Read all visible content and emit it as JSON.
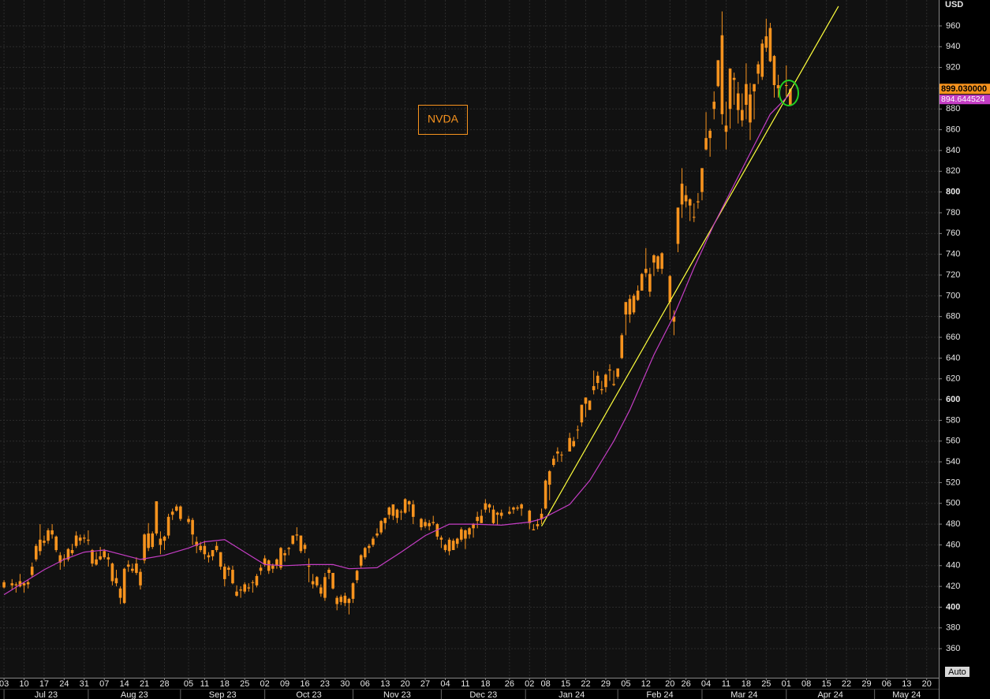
{
  "chart_data": {
    "type": "candlestick",
    "title": "NVDA",
    "y_axis_label": "USD",
    "button": "Auto",
    "color": "#f7931e",
    "x": [
      "2023-07-03",
      "2023-07-05",
      "2023-07-06",
      "2023-07-07",
      "2023-07-10",
      "2023-07-11",
      "2023-07-12",
      "2023-07-13",
      "2023-07-14",
      "2023-07-17",
      "2023-07-18",
      "2023-07-19",
      "2023-07-20",
      "2023-07-21",
      "2023-07-24",
      "2023-07-25",
      "2023-07-26",
      "2023-07-27",
      "2023-07-28",
      "2023-07-31",
      "2023-08-01",
      "2023-08-02",
      "2023-08-03",
      "2023-08-04",
      "2023-08-07",
      "2023-08-08",
      "2023-08-09",
      "2023-08-10",
      "2023-08-11",
      "2023-08-14",
      "2023-08-15",
      "2023-08-16",
      "2023-08-17",
      "2023-08-18",
      "2023-08-21",
      "2023-08-22",
      "2023-08-23",
      "2023-08-24",
      "2023-08-25",
      "2023-08-28",
      "2023-08-29",
      "2023-08-30",
      "2023-08-31",
      "2023-09-01",
      "2023-09-05",
      "2023-09-06",
      "2023-09-07",
      "2023-09-08",
      "2023-09-11",
      "2023-09-12",
      "2023-09-13",
      "2023-09-14",
      "2023-09-15",
      "2023-09-18",
      "2023-09-19",
      "2023-09-20",
      "2023-09-21",
      "2023-09-22",
      "2023-09-25",
      "2023-09-26",
      "2023-09-27",
      "2023-09-28",
      "2023-09-29",
      "2023-10-02",
      "2023-10-03",
      "2023-10-04",
      "2023-10-05",
      "2023-10-06",
      "2023-10-09",
      "2023-10-10",
      "2023-10-11",
      "2023-10-12",
      "2023-10-13",
      "2023-10-16",
      "2023-10-17",
      "2023-10-18",
      "2023-10-19",
      "2023-10-20",
      "2023-10-23",
      "2023-10-24",
      "2023-10-25",
      "2023-10-26",
      "2023-10-27",
      "2023-10-30",
      "2023-10-31",
      "2023-11-01",
      "2023-11-02",
      "2023-11-03",
      "2023-11-06",
      "2023-11-07",
      "2023-11-08",
      "2023-11-09",
      "2023-11-10",
      "2023-11-13",
      "2023-11-14",
      "2023-11-15",
      "2023-11-16",
      "2023-11-17",
      "2023-11-20",
      "2023-11-21",
      "2023-11-22",
      "2023-11-24",
      "2023-11-27",
      "2023-11-28",
      "2023-11-29",
      "2023-11-30",
      "2023-12-01",
      "2023-12-04",
      "2023-12-05",
      "2023-12-06",
      "2023-12-07",
      "2023-12-08",
      "2023-12-11",
      "2023-12-12",
      "2023-12-13",
      "2023-12-14",
      "2023-12-15",
      "2023-12-18",
      "2023-12-19",
      "2023-12-20",
      "2023-12-21",
      "2023-12-22",
      "2023-12-26",
      "2023-12-27",
      "2023-12-28",
      "2023-12-29",
      "2024-01-02",
      "2024-01-03",
      "2024-01-04",
      "2024-01-05",
      "2024-01-08",
      "2024-01-09",
      "2024-01-10",
      "2024-01-11",
      "2024-01-12",
      "2024-01-16",
      "2024-01-17",
      "2024-01-18",
      "2024-01-19",
      "2024-01-22",
      "2024-01-23",
      "2024-01-24",
      "2024-01-25",
      "2024-01-26",
      "2024-01-29",
      "2024-01-30",
      "2024-01-31",
      "2024-02-01",
      "2024-02-02",
      "2024-02-05",
      "2024-02-06",
      "2024-02-07",
      "2024-02-08",
      "2024-02-09",
      "2024-02-12",
      "2024-02-13",
      "2024-02-14",
      "2024-02-15",
      "2024-02-16",
      "2024-02-20",
      "2024-02-21",
      "2024-02-22",
      "2024-02-23",
      "2024-02-26",
      "2024-02-27",
      "2024-02-28",
      "2024-02-29",
      "2024-03-01",
      "2024-03-04",
      "2024-03-05",
      "2024-03-06",
      "2024-03-07",
      "2024-03-08",
      "2024-03-11",
      "2024-03-12",
      "2024-03-13",
      "2024-03-14",
      "2024-03-15",
      "2024-03-18",
      "2024-03-19",
      "2024-03-20",
      "2024-03-21",
      "2024-03-22",
      "2024-03-25",
      "2024-03-26",
      "2024-03-27",
      "2024-03-28",
      "2024-04-01",
      "2024-04-02"
    ],
    "open": [
      419,
      421,
      422,
      420,
      423,
      422,
      431,
      446,
      465,
      462,
      464,
      474,
      468,
      450,
      447,
      446,
      452,
      469,
      464,
      466,
      464,
      455,
      441,
      449,
      448,
      448,
      442,
      428,
      418,
      404,
      441,
      437,
      442,
      421,
      445,
      471,
      458,
      502,
      466,
      464,
      469,
      489,
      497,
      497,
      482,
      484,
      459,
      459,
      459,
      450,
      449,
      459,
      453,
      427,
      438,
      436,
      415,
      417,
      415,
      418,
      424,
      421,
      438,
      441,
      445,
      437,
      440,
      438,
      450,
      456,
      461,
      470,
      469,
      456,
      440,
      425,
      429,
      419,
      409,
      433,
      433,
      409,
      410,
      404,
      404,
      408,
      426,
      440,
      448,
      457,
      460,
      471,
      472,
      481,
      489,
      499,
      486,
      492,
      491,
      502,
      499,
      485,
      478,
      481,
      482,
      480,
      465,
      460,
      454,
      464,
      461,
      465,
      474,
      470,
      476,
      487,
      481,
      494,
      499,
      494,
      491,
      491,
      490,
      496,
      496,
      499,
      493,
      474,
      478,
      485,
      495,
      518,
      537,
      550,
      547,
      550,
      555,
      571,
      578,
      602,
      590,
      609,
      623,
      609,
      612,
      629,
      614,
      622,
      640,
      682,
      697,
      684,
      705,
      705,
      726,
      704,
      732,
      738,
      741,
      719,
      680,
      750,
      808,
      797,
      793,
      776,
      790,
      800,
      841,
      852,
      880,
      902,
      951,
      864,
      880,
      910,
      895,
      869,
      904,
      867,
      897,
      923,
      911,
      939,
      958,
      931,
      900,
      903,
      884
    ],
    "high": [
      426,
      427,
      424,
      432,
      424,
      426,
      443,
      461,
      480,
      469,
      476,
      480,
      469,
      453,
      451,
      457,
      461,
      473,
      470,
      470,
      474,
      456,
      453,
      458,
      456,
      452,
      443,
      436,
      420,
      438,
      445,
      442,
      448,
      437,
      471,
      481,
      473,
      502,
      473,
      469,
      490,
      495,
      499,
      498,
      488,
      486,
      468,
      463,
      464,
      453,
      455,
      463,
      453,
      442,
      440,
      440,
      421,
      420,
      424,
      423,
      426,
      432,
      441,
      450,
      446,
      442,
      447,
      458,
      455,
      458,
      469,
      477,
      469,
      462,
      447,
      432,
      430,
      422,
      433,
      438,
      433,
      411,
      412,
      414,
      409,
      424,
      436,
      451,
      458,
      461,
      468,
      476,
      484,
      486,
      497,
      499,
      495,
      494,
      505,
      503,
      503,
      486,
      485,
      484,
      488,
      481,
      469,
      461,
      467,
      466,
      467,
      477,
      475,
      477,
      481,
      492,
      494,
      504,
      500,
      498,
      492,
      494,
      497,
      497,
      498,
      500,
      494,
      480,
      485,
      495,
      523,
      532,
      546,
      554,
      550,
      568,
      564,
      575,
      595,
      602,
      599,
      628,
      627,
      618,
      625,
      634,
      628,
      630,
      664,
      694,
      701,
      702,
      710,
      722,
      746,
      727,
      740,
      739,
      742,
      720,
      686,
      785,
      823,
      806,
      794,
      789,
      799,
      823,
      877,
      861,
      897,
      927,
      974,
      887,
      919,
      915,
      906,
      895,
      924,
      905,
      904,
      926,
      947,
      967,
      963,
      932,
      913,
      922,
      900
    ],
    "low": [
      418,
      417,
      414,
      419,
      414,
      418,
      429,
      444,
      450,
      459,
      461,
      466,
      453,
      436,
      439,
      444,
      450,
      457,
      460,
      462,
      460,
      439,
      440,
      445,
      446,
      439,
      421,
      420,
      403,
      403,
      434,
      433,
      431,
      417,
      442,
      454,
      456,
      469,
      451,
      455,
      466,
      484,
      492,
      483,
      480,
      460,
      452,
      453,
      446,
      443,
      445,
      453,
      436,
      420,
      430,
      422,
      410,
      409,
      413,
      415,
      414,
      419,
      431,
      439,
      432,
      433,
      437,
      436,
      444,
      450,
      460,
      464,
      452,
      452,
      424,
      418,
      419,
      410,
      406,
      427,
      417,
      397,
      402,
      401,
      393,
      404,
      423,
      438,
      446,
      452,
      458,
      467,
      470,
      475,
      485,
      484,
      481,
      484,
      490,
      492,
      480,
      474,
      476,
      474,
      479,
      465,
      457,
      453,
      450,
      455,
      457,
      463,
      456,
      466,
      467,
      476,
      481,
      491,
      491,
      480,
      479,
      485,
      489,
      490,
      493,
      488,
      475,
      474,
      475,
      480,
      494,
      503,
      535,
      540,
      540,
      550,
      554,
      562,
      574,
      583,
      590,
      605,
      610,
      605,
      607,
      618,
      613,
      620,
      639,
      662,
      674,
      682,
      695,
      705,
      718,
      699,
      719,
      723,
      721,
      677,
      662,
      742,
      775,
      785,
      772,
      771,
      784,
      792,
      840,
      834,
      870,
      901,
      865,
      841,
      861,
      884,
      866,
      863,
      870,
      850,
      870,
      904,
      908,
      935,
      925,
      891,
      891,
      892,
      884
    ],
    "close": [
      424,
      423,
      421,
      425,
      421,
      424,
      439,
      459,
      454,
      464,
      474,
      470,
      455,
      443,
      446,
      456,
      455,
      459,
      467,
      467,
      465,
      442,
      446,
      446,
      454,
      446,
      425,
      423,
      409,
      437,
      439,
      435,
      433,
      434,
      470,
      457,
      471,
      471,
      460,
      468,
      487,
      492,
      493,
      485,
      485,
      470,
      463,
      455,
      451,
      448,
      455,
      455,
      439,
      439,
      436,
      423,
      411,
      416,
      422,
      419,
      424,
      430,
      435,
      447,
      435,
      440,
      446,
      457,
      452,
      457,
      469,
      469,
      454,
      460,
      439,
      422,
      421,
      413,
      429,
      436,
      418,
      403,
      405,
      411,
      408,
      423,
      435,
      450,
      457,
      459,
      466,
      469,
      483,
      486,
      496,
      488,
      494,
      492,
      504,
      499,
      487,
      477,
      482,
      478,
      481,
      468,
      467,
      455,
      465,
      455,
      466,
      475,
      466,
      476,
      480,
      483,
      488,
      500,
      496,
      481,
      489,
      488,
      492,
      494,
      495,
      495,
      481,
      475,
      480,
      490,
      522,
      531,
      543,
      548,
      547,
      563,
      560,
      571,
      595,
      596,
      599,
      613,
      616,
      610,
      624,
      628,
      615,
      630,
      662,
      694,
      682,
      700,
      696,
      721,
      722,
      721,
      739,
      726,
      726,
      694,
      675,
      785,
      788,
      791,
      787,
      776,
      791,
      823,
      852,
      859,
      887,
      927,
      875,
      858,
      919,
      908,
      879,
      879,
      884,
      894,
      904,
      914,
      943,
      950,
      926,
      903,
      903,
      903,
      899.03
    ],
    "ma": {
      "color": "#c43dc4",
      "x": [
        "2023-07-03",
        "2023-07-17",
        "2023-07-24",
        "2023-07-31",
        "2023-08-07",
        "2023-08-14",
        "2023-08-18",
        "2023-08-28",
        "2023-09-05",
        "2023-09-11",
        "2023-09-18",
        "2023-09-25",
        "2023-10-02",
        "2023-10-09",
        "2023-10-17",
        "2023-10-25",
        "2023-10-31",
        "2023-11-09",
        "2023-11-17",
        "2023-11-27",
        "2023-12-05",
        "2023-12-13",
        "2023-12-22",
        "2024-01-02",
        "2024-01-05",
        "2024-01-16",
        "2024-01-23",
        "2024-01-31",
        "2024-02-06",
        "2024-02-14",
        "2024-02-21",
        "2024-02-28",
        "2024-03-06",
        "2024-03-13",
        "2024-03-20",
        "2024-03-26",
        "2024-04-02"
      ],
      "values": [
        412,
        436,
        446,
        453,
        455,
        450,
        446,
        450,
        457,
        463,
        465,
        453,
        441,
        440,
        441,
        441,
        437,
        438,
        453,
        469,
        480,
        480,
        479,
        482,
        485,
        499,
        522,
        560,
        590,
        643,
        681,
        727,
        769,
        807,
        845,
        875,
        894.644524
      ]
    },
    "trendline": {
      "color": "#ffff3c",
      "x": [
        "2024-01-05",
        "2024-04-18"
      ],
      "values": [
        478,
        979
      ]
    },
    "last_price": {
      "value": 899.03,
      "label": "899.030000"
    },
    "last_ma": 894.644524,
    "xlim": [
      "2023-06-30",
      "2024-05-23"
    ],
    "ylim": [
      332,
      985
    ],
    "yticks": [
      360,
      380,
      400,
      420,
      440,
      460,
      480,
      500,
      520,
      540,
      560,
      580,
      600,
      620,
      640,
      660,
      680,
      700,
      720,
      740,
      760,
      780,
      800,
      820,
      840,
      860,
      880,
      900,
      920,
      940,
      960
    ],
    "xticks": [
      {
        "value": "2023-07-03",
        "label": "03"
      },
      {
        "value": "2023-07-10",
        "label": "10"
      },
      {
        "value": "2023-07-17",
        "label": "17"
      },
      {
        "value": "2023-07-24",
        "label": "24"
      },
      {
        "value": "2023-07-31",
        "label": "31"
      },
      {
        "value": "2023-08-07",
        "label": "07"
      },
      {
        "value": "2023-08-14",
        "label": "14"
      },
      {
        "value": "2023-08-21",
        "label": "21"
      },
      {
        "value": "2023-08-28",
        "label": "28"
      },
      {
        "value": "2023-09-05",
        "label": "05"
      },
      {
        "value": "2023-09-11",
        "label": "11"
      },
      {
        "value": "2023-09-18",
        "label": "18"
      },
      {
        "value": "2023-09-25",
        "label": "25"
      },
      {
        "value": "2023-10-02",
        "label": "02"
      },
      {
        "value": "2023-10-09",
        "label": "09"
      },
      {
        "value": "2023-10-16",
        "label": "16"
      },
      {
        "value": "2023-10-23",
        "label": "23"
      },
      {
        "value": "2023-10-30",
        "label": "30"
      },
      {
        "value": "2023-11-06",
        "label": "06"
      },
      {
        "value": "2023-11-13",
        "label": "13"
      },
      {
        "value": "2023-11-20",
        "label": "20"
      },
      {
        "value": "2023-11-27",
        "label": "27"
      },
      {
        "value": "2023-12-04",
        "label": "04"
      },
      {
        "value": "2023-12-11",
        "label": "11"
      },
      {
        "value": "2023-12-18",
        "label": "18"
      },
      {
        "value": "2023-12-26",
        "label": "26"
      },
      {
        "value": "2024-01-02",
        "label": "02"
      },
      {
        "value": "2024-01-08",
        "label": "08"
      },
      {
        "value": "2024-01-15",
        "label": "15"
      },
      {
        "value": "2024-01-22",
        "label": "22"
      },
      {
        "value": "2024-01-29",
        "label": "29"
      },
      {
        "value": "2024-02-05",
        "label": "05"
      },
      {
        "value": "2024-02-12",
        "label": "12"
      },
      {
        "value": "2024-02-20",
        "label": "20"
      },
      {
        "value": "2024-02-26",
        "label": "26"
      },
      {
        "value": "2024-03-04",
        "label": "04"
      },
      {
        "value": "2024-03-11",
        "label": "11"
      },
      {
        "value": "2024-03-18",
        "label": "18"
      },
      {
        "value": "2024-03-25",
        "label": "25"
      },
      {
        "value": "2024-04-01",
        "label": "01"
      },
      {
        "value": "2024-04-08",
        "label": "08"
      },
      {
        "value": "2024-04-15",
        "label": "15"
      },
      {
        "value": "2024-04-22",
        "label": "22"
      },
      {
        "value": "2024-04-29",
        "label": "29"
      },
      {
        "value": "2024-05-06",
        "label": "06"
      },
      {
        "value": "2024-05-13",
        "label": "13"
      },
      {
        "value": "2024-05-20",
        "label": "20"
      }
    ],
    "month_ticks": [
      {
        "value": "2023-07",
        "label": "Jul 23"
      },
      {
        "value": "2023-08",
        "label": "Aug 23"
      },
      {
        "value": "2023-09",
        "label": "Sep 23"
      },
      {
        "value": "2023-10",
        "label": "Oct 23"
      },
      {
        "value": "2023-11",
        "label": "Nov 23"
      },
      {
        "value": "2023-12",
        "label": "Dec 23"
      },
      {
        "value": "2024-01",
        "label": "Jan 24"
      },
      {
        "value": "2024-02",
        "label": "Feb 24"
      },
      {
        "value": "2024-03",
        "label": "Mar 24"
      },
      {
        "value": "2024-04",
        "label": "Apr 24"
      },
      {
        "value": "2024-05",
        "label": "May 24"
      }
    ],
    "grid": true
  }
}
